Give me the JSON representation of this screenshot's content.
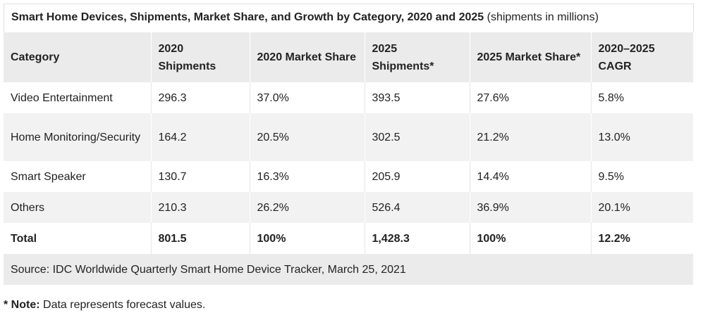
{
  "table": {
    "title": "Smart Home Devices, Shipments, Market Share, and Growth by Category, 2020 and 2025",
    "title_suffix": "(shipments in millions)",
    "headers": {
      "category": "Category",
      "ship2020": "2020 Shipments",
      "share2020": "2020 Market Share",
      "ship2025": "2025 Shipments*",
      "share2025": "2025 Market Share*",
      "cagr": "2020–2025 CAGR"
    },
    "rows": [
      {
        "category": "Video Entertainment",
        "ship2020": "296.3",
        "share2020": "37.0%",
        "ship2025": "393.5",
        "share2025": "27.6%",
        "cagr": "5.8%"
      },
      {
        "category": "Home Monitoring/Security",
        "ship2020": "164.2",
        "share2020": "20.5%",
        "ship2025": "302.5",
        "share2025": "21.2%",
        "cagr": "13.0%"
      },
      {
        "category": "Smart Speaker",
        "ship2020": "130.7",
        "share2020": "16.3%",
        "ship2025": "205.9",
        "share2025": "14.4%",
        "cagr": "9.5%"
      },
      {
        "category": "Others",
        "ship2020": "210.3",
        "share2020": "26.2%",
        "ship2025": "526.4",
        "share2025": "36.9%",
        "cagr": "20.1%"
      }
    ],
    "total": {
      "category": "Total",
      "ship2020": "801.5",
      "share2020": "100%",
      "ship2025": "1,428.3",
      "share2025": "100%",
      "cagr": "12.2%"
    },
    "source": "Source: IDC Worldwide Quarterly Smart Home Device Tracker, March 25, 2021"
  },
  "note": {
    "label": "* Note:",
    "text": "Data represents forecast values."
  }
}
